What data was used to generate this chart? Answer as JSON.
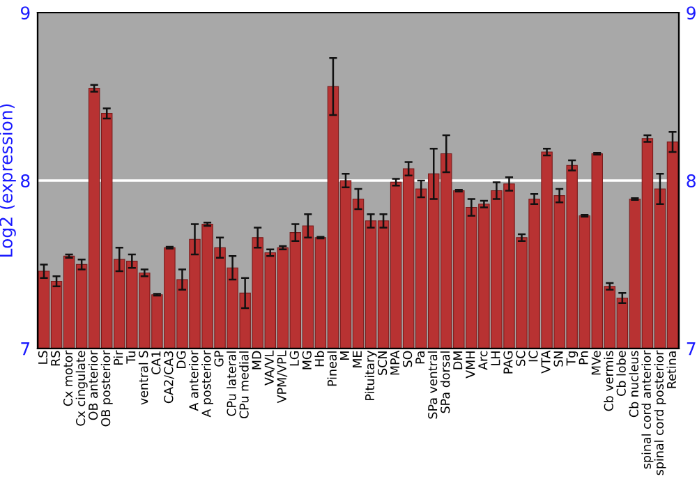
{
  "chart_data": {
    "type": "bar",
    "ylabel": "Log2 (expression)",
    "categories": [
      "LS",
      "RS",
      "Cx motor",
      "Cx cingulate",
      "OB anterior",
      "OB posterior",
      "Pir",
      "Tu",
      "ventral S",
      "CA1",
      "CA2/CA3",
      "DG",
      "A anterior",
      "A posterior",
      "GP",
      "CPu lateral",
      "CPu medial",
      "MD",
      "VA/VL",
      "VPM/VPL",
      "LG",
      "MG",
      "Hb",
      "Pineal",
      "M",
      "ME",
      "Pituitary",
      "SCN",
      "MPA",
      "SO",
      "Pa",
      "SPa ventral",
      "SPa dorsal",
      "DM",
      "VMH",
      "Arc",
      "LH",
      "PAG",
      "SC",
      "IC",
      "VTA",
      "SN",
      "Tg",
      "Pn",
      "MVe",
      "Cb vermis",
      "Cb lobe",
      "Cb nucleus",
      "spinal cord anterior",
      "spinal cord posterior",
      "Retina"
    ],
    "values": [
      7.46,
      7.4,
      7.55,
      7.5,
      8.55,
      8.4,
      7.53,
      7.52,
      7.45,
      7.32,
      7.6,
      7.41,
      7.65,
      7.74,
      7.6,
      7.48,
      7.33,
      7.66,
      7.57,
      7.6,
      7.69,
      7.73,
      7.66,
      8.56,
      8.0,
      7.89,
      7.76,
      7.76,
      7.99,
      8.07,
      7.95,
      8.04,
      8.16,
      7.94,
      7.84,
      7.86,
      7.94,
      7.98,
      7.66,
      7.89,
      8.17,
      7.91,
      8.09,
      7.79,
      8.16,
      7.37,
      7.3,
      7.89,
      8.25,
      7.95,
      8.23
    ],
    "errors": [
      0.04,
      0.03,
      0.01,
      0.03,
      0.02,
      0.03,
      0.07,
      0.04,
      0.02,
      0.005,
      0.005,
      0.06,
      0.09,
      0.01,
      0.06,
      0.07,
      0.09,
      0.06,
      0.02,
      0.01,
      0.05,
      0.07,
      0.005,
      0.17,
      0.04,
      0.06,
      0.04,
      0.04,
      0.02,
      0.04,
      0.05,
      0.15,
      0.11,
      0.005,
      0.05,
      0.02,
      0.05,
      0.04,
      0.02,
      0.03,
      0.02,
      0.04,
      0.03,
      0.005,
      0.005,
      0.02,
      0.03,
      0.005,
      0.02,
      0.09,
      0.06
    ],
    "color": "#b83232",
    "ylim": [
      7,
      9
    ],
    "yticks": [
      7,
      8,
      9
    ],
    "y2lim": [
      7,
      9
    ],
    "y2ticks": [
      7,
      8,
      9
    ],
    "grid": "y"
  }
}
